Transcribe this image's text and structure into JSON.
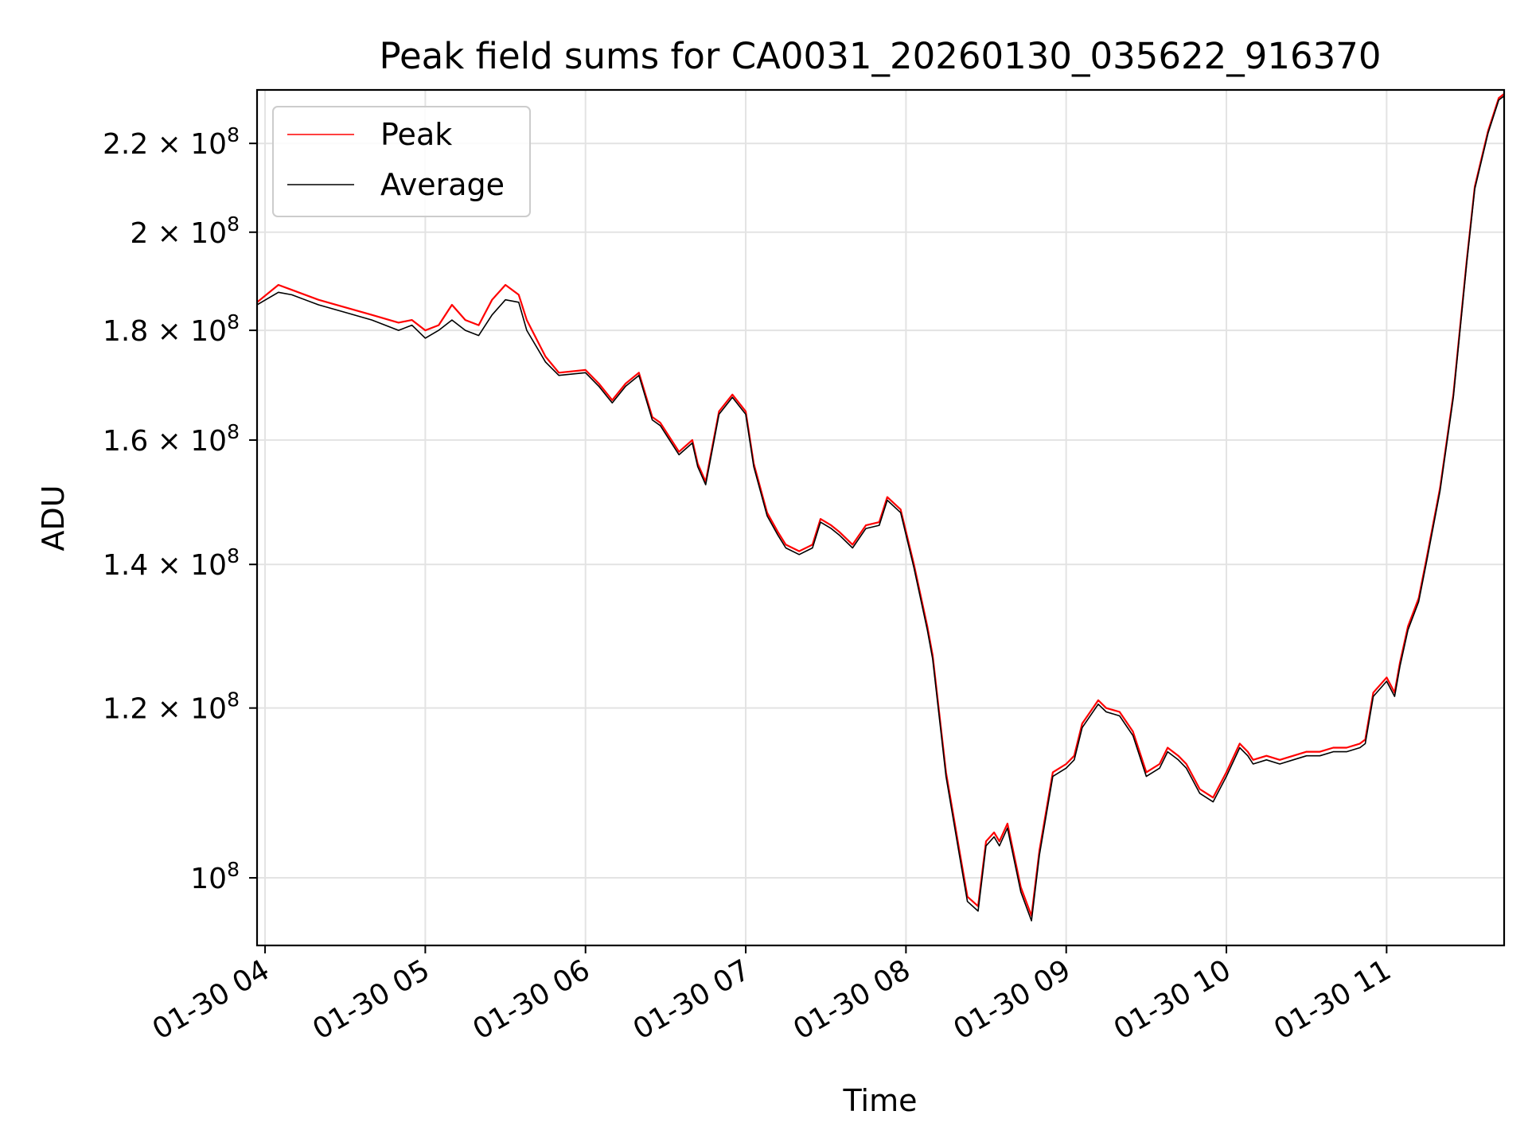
{
  "chart_data": {
    "type": "line",
    "title": "Peak field sums for CA0031_20260130_035622_916370",
    "xlabel": "Time",
    "ylabel": "ADU",
    "y_scale": "log",
    "grid": true,
    "legend_position": "top-left",
    "xlim": [
      "2026-01-30 03:57",
      "2026-01-30 11:44"
    ],
    "ylim": [
      93000000,
      233000000
    ],
    "x_ticks": [
      {
        "value": "2026-01-30 04:00",
        "label": "01-30 04"
      },
      {
        "value": "2026-01-30 05:00",
        "label": "01-30 05"
      },
      {
        "value": "2026-01-30 06:00",
        "label": "01-30 06"
      },
      {
        "value": "2026-01-30 07:00",
        "label": "01-30 07"
      },
      {
        "value": "2026-01-30 08:00",
        "label": "01-30 08"
      },
      {
        "value": "2026-01-30 09:00",
        "label": "01-30 09"
      },
      {
        "value": "2026-01-30 10:00",
        "label": "01-30 10"
      },
      {
        "value": "2026-01-30 11:00",
        "label": "01-30 11"
      }
    ],
    "y_ticks": [
      {
        "value": 100000000,
        "mantissa": "",
        "exponent": "8"
      },
      {
        "value": 120000000,
        "mantissa": "1.2",
        "exponent": "8"
      },
      {
        "value": 140000000,
        "mantissa": "1.4",
        "exponent": "8"
      },
      {
        "value": 160000000,
        "mantissa": "1.6",
        "exponent": "8"
      },
      {
        "value": 180000000,
        "mantissa": "1.8",
        "exponent": "8"
      },
      {
        "value": 200000000,
        "mantissa": "2",
        "exponent": "8"
      },
      {
        "value": 220000000,
        "mantissa": "2.2",
        "exponent": "8"
      }
    ],
    "series": [
      {
        "name": "Peak",
        "color": "#ff0000",
        "x": [
          "2026-01-30 03:57",
          "2026-01-30 04:05",
          "2026-01-30 04:10",
          "2026-01-30 04:20",
          "2026-01-30 04:30",
          "2026-01-30 04:40",
          "2026-01-30 04:50",
          "2026-01-30 04:55",
          "2026-01-30 05:00",
          "2026-01-30 05:05",
          "2026-01-30 05:10",
          "2026-01-30 05:15",
          "2026-01-30 05:20",
          "2026-01-30 05:25",
          "2026-01-30 05:30",
          "2026-01-30 05:35",
          "2026-01-30 05:38",
          "2026-01-30 05:45",
          "2026-01-30 05:50",
          "2026-01-30 06:00",
          "2026-01-30 06:05",
          "2026-01-30 06:10",
          "2026-01-30 06:15",
          "2026-01-30 06:20",
          "2026-01-30 06:25",
          "2026-01-30 06:28",
          "2026-01-30 06:35",
          "2026-01-30 06:40",
          "2026-01-30 06:42",
          "2026-01-30 06:45",
          "2026-01-30 06:50",
          "2026-01-30 06:55",
          "2026-01-30 07:00",
          "2026-01-30 07:03",
          "2026-01-30 07:08",
          "2026-01-30 07:12",
          "2026-01-30 07:15",
          "2026-01-30 07:20",
          "2026-01-30 07:25",
          "2026-01-30 07:28",
          "2026-01-30 07:32",
          "2026-01-30 07:35",
          "2026-01-30 07:40",
          "2026-01-30 07:45",
          "2026-01-30 07:50",
          "2026-01-30 07:53",
          "2026-01-30 07:58",
          "2026-01-30 08:03",
          "2026-01-30 08:08",
          "2026-01-30 08:10",
          "2026-01-30 08:15",
          "2026-01-30 08:20",
          "2026-01-30 08:23",
          "2026-01-30 08:27",
          "2026-01-30 08:30",
          "2026-01-30 08:33",
          "2026-01-30 08:35",
          "2026-01-30 08:38",
          "2026-01-30 08:43",
          "2026-01-30 08:47",
          "2026-01-30 08:50",
          "2026-01-30 08:55",
          "2026-01-30 09:00",
          "2026-01-30 09:03",
          "2026-01-30 09:06",
          "2026-01-30 09:12",
          "2026-01-30 09:15",
          "2026-01-30 09:20",
          "2026-01-30 09:25",
          "2026-01-30 09:30",
          "2026-01-30 09:35",
          "2026-01-30 09:38",
          "2026-01-30 09:42",
          "2026-01-30 09:45",
          "2026-01-30 09:50",
          "2026-01-30 09:55",
          "2026-01-30 10:00",
          "2026-01-30 10:05",
          "2026-01-30 10:08",
          "2026-01-30 10:10",
          "2026-01-30 10:15",
          "2026-01-30 10:20",
          "2026-01-30 10:25",
          "2026-01-30 10:30",
          "2026-01-30 10:35",
          "2026-01-30 10:40",
          "2026-01-30 10:45",
          "2026-01-30 10:50",
          "2026-01-30 10:52",
          "2026-01-30 10:55",
          "2026-01-30 11:00",
          "2026-01-30 11:03",
          "2026-01-30 11:05",
          "2026-01-30 11:08",
          "2026-01-30 11:12",
          "2026-01-30 11:15",
          "2026-01-30 11:20",
          "2026-01-30 11:25",
          "2026-01-30 11:30",
          "2026-01-30 11:33",
          "2026-01-30 11:38",
          "2026-01-30 11:42",
          "2026-01-30 11:44"
        ],
        "values": [
          185500000,
          189000000,
          188000000,
          186000000,
          184500000,
          183000000,
          181500000,
          182000000,
          180000000,
          181000000,
          185000000,
          182000000,
          181000000,
          186000000,
          189000000,
          187000000,
          182000000,
          175000000,
          172000000,
          172500000,
          170000000,
          167000000,
          170000000,
          172000000,
          164000000,
          163000000,
          158000000,
          160000000,
          156000000,
          153000000,
          165000000,
          168000000,
          165000000,
          156000000,
          148000000,
          145000000,
          143000000,
          142000000,
          143000000,
          147000000,
          146000000,
          145000000,
          143000000,
          146000000,
          146500000,
          150500000,
          148500000,
          140000000,
          131000000,
          127000000,
          112000000,
          103000000,
          98000000,
          97000000,
          104000000,
          105000000,
          104000000,
          106000000,
          99000000,
          96000000,
          103000000,
          112000000,
          113000000,
          114000000,
          118000000,
          121000000,
          120000000,
          119500000,
          117000000,
          112000000,
          113000000,
          115000000,
          114000000,
          113000000,
          110000000,
          109000000,
          112000000,
          115500000,
          114500000,
          113500000,
          114000000,
          113500000,
          114000000,
          114500000,
          114500000,
          115000000,
          115000000,
          115500000,
          116000000,
          122000000,
          124000000,
          122000000,
          126000000,
          131000000,
          135000000,
          141000000,
          152000000,
          168000000,
          194000000,
          210000000,
          223000000,
          231000000,
          232000000
        ]
      },
      {
        "name": "Average",
        "color": "#000000",
        "x": [
          "2026-01-30 03:57",
          "2026-01-30 04:05",
          "2026-01-30 04:10",
          "2026-01-30 04:20",
          "2026-01-30 04:30",
          "2026-01-30 04:40",
          "2026-01-30 04:50",
          "2026-01-30 04:55",
          "2026-01-30 05:00",
          "2026-01-30 05:05",
          "2026-01-30 05:10",
          "2026-01-30 05:15",
          "2026-01-30 05:20",
          "2026-01-30 05:25",
          "2026-01-30 05:30",
          "2026-01-30 05:35",
          "2026-01-30 05:38",
          "2026-01-30 05:45",
          "2026-01-30 05:50",
          "2026-01-30 06:00",
          "2026-01-30 06:05",
          "2026-01-30 06:10",
          "2026-01-30 06:15",
          "2026-01-30 06:20",
          "2026-01-30 06:25",
          "2026-01-30 06:28",
          "2026-01-30 06:35",
          "2026-01-30 06:40",
          "2026-01-30 06:42",
          "2026-01-30 06:45",
          "2026-01-30 06:50",
          "2026-01-30 06:55",
          "2026-01-30 07:00",
          "2026-01-30 07:03",
          "2026-01-30 07:08",
          "2026-01-30 07:12",
          "2026-01-30 07:15",
          "2026-01-30 07:20",
          "2026-01-30 07:25",
          "2026-01-30 07:28",
          "2026-01-30 07:32",
          "2026-01-30 07:35",
          "2026-01-30 07:40",
          "2026-01-30 07:45",
          "2026-01-30 07:50",
          "2026-01-30 07:53",
          "2026-01-30 07:58",
          "2026-01-30 08:03",
          "2026-01-30 08:08",
          "2026-01-30 08:10",
          "2026-01-30 08:15",
          "2026-01-30 08:20",
          "2026-01-30 08:23",
          "2026-01-30 08:27",
          "2026-01-30 08:30",
          "2026-01-30 08:33",
          "2026-01-30 08:35",
          "2026-01-30 08:38",
          "2026-01-30 08:43",
          "2026-01-30 08:47",
          "2026-01-30 08:50",
          "2026-01-30 08:55",
          "2026-01-30 09:00",
          "2026-01-30 09:03",
          "2026-01-30 09:06",
          "2026-01-30 09:12",
          "2026-01-30 09:15",
          "2026-01-30 09:20",
          "2026-01-30 09:25",
          "2026-01-30 09:30",
          "2026-01-30 09:35",
          "2026-01-30 09:38",
          "2026-01-30 09:42",
          "2026-01-30 09:45",
          "2026-01-30 09:50",
          "2026-01-30 09:55",
          "2026-01-30 10:00",
          "2026-01-30 10:05",
          "2026-01-30 10:08",
          "2026-01-30 10:10",
          "2026-01-30 10:15",
          "2026-01-30 10:20",
          "2026-01-30 10:25",
          "2026-01-30 10:30",
          "2026-01-30 10:35",
          "2026-01-30 10:40",
          "2026-01-30 10:45",
          "2026-01-30 10:50",
          "2026-01-30 10:52",
          "2026-01-30 10:55",
          "2026-01-30 11:00",
          "2026-01-30 11:03",
          "2026-01-30 11:05",
          "2026-01-30 11:08",
          "2026-01-30 11:12",
          "2026-01-30 11:15",
          "2026-01-30 11:20",
          "2026-01-30 11:25",
          "2026-01-30 11:30",
          "2026-01-30 11:33",
          "2026-01-30 11:38",
          "2026-01-30 11:42",
          "2026-01-30 11:44"
        ],
        "values": [
          185000000,
          187500000,
          187000000,
          185000000,
          183500000,
          182000000,
          180000000,
          181000000,
          178500000,
          180000000,
          182000000,
          180000000,
          179000000,
          183000000,
          186000000,
          185500000,
          180000000,
          174000000,
          171500000,
          172000000,
          169500000,
          166500000,
          169500000,
          171500000,
          163500000,
          162500000,
          157500000,
          159500000,
          155500000,
          152500000,
          164500000,
          167500000,
          164500000,
          155500000,
          147500000,
          144500000,
          142500000,
          141500000,
          142500000,
          146500000,
          145500000,
          144500000,
          142500000,
          145500000,
          146000000,
          150000000,
          148000000,
          139500000,
          130500000,
          126500000,
          111500000,
          102500000,
          97500000,
          96500000,
          103500000,
          104500000,
          103500000,
          105500000,
          98500000,
          95500000,
          102500000,
          111500000,
          112500000,
          113500000,
          117500000,
          120500000,
          119500000,
          119000000,
          116500000,
          111500000,
          112500000,
          114500000,
          113500000,
          112500000,
          109500000,
          108500000,
          111500000,
          115000000,
          114000000,
          113000000,
          113500000,
          113000000,
          113500000,
          114000000,
          114000000,
          114500000,
          114500000,
          115000000,
          115500000,
          121500000,
          123500000,
          121500000,
          125500000,
          130500000,
          134500000,
          140500000,
          151500000,
          167500000,
          193500000,
          209500000,
          222500000,
          230500000,
          231500000
        ]
      }
    ]
  }
}
